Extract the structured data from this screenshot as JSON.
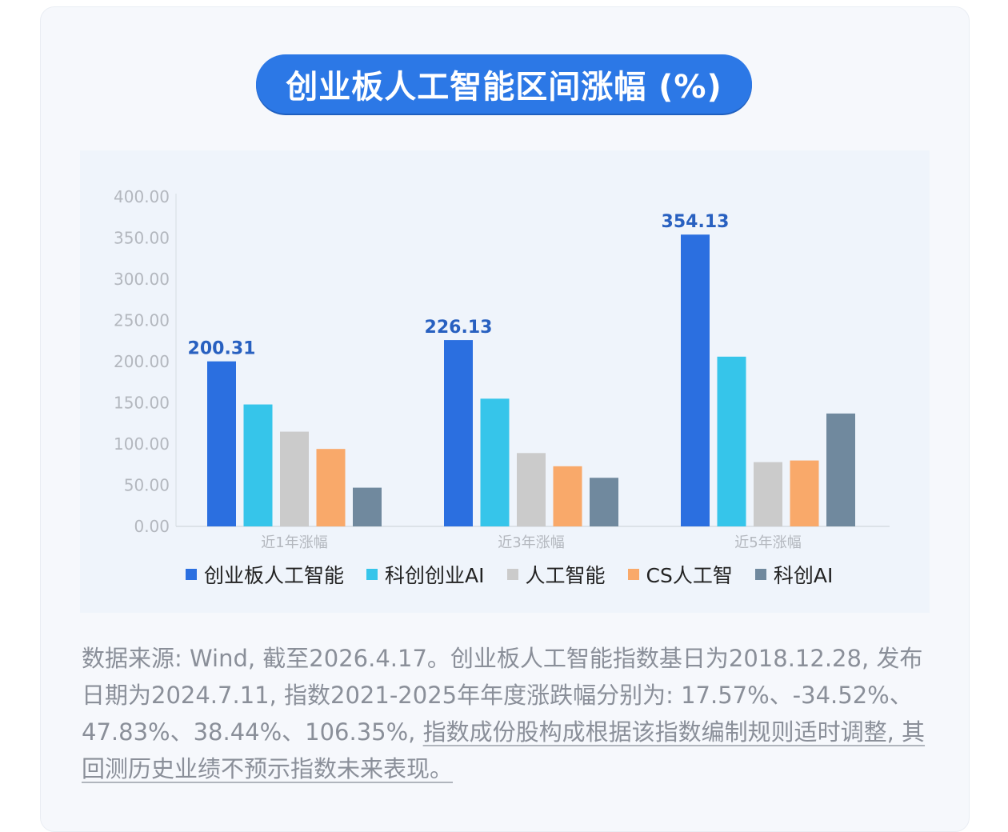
{
  "title": "创业板人工智能区间涨幅 (%)",
  "note": {
    "plain": "数据来源: Wind, 截至2026.4.17。创业板人工智能指数基日为2018.12.28, 发布日期为2024.7.11, 指数2021-2025年年度涨跌幅分别为: 17.57%、-34.52%、47.83%、38.44%、106.35%, ",
    "underlined": "指数成份股构成根据该指数编制规则适时调整, 其回测历史业绩不预示指数未来表现。"
  },
  "chart_data": {
    "type": "bar",
    "title": "创业板人工智能区间涨幅 (%)",
    "categories": [
      "近1年涨幅",
      "近3年涨幅",
      "近5年涨幅"
    ],
    "ylim": [
      0,
      400
    ],
    "yticks": [
      "0.00",
      "50.00",
      "100.00",
      "150.00",
      "200.00",
      "250.00",
      "300.00",
      "350.00",
      "400.00"
    ],
    "grid": false,
    "legend_position": "bottom",
    "series": [
      {
        "name": "创业板人工智能",
        "color": "#2b6fe0",
        "values": [
          200.31,
          226.13,
          354.13
        ],
        "labels": [
          "200.31",
          "226.13",
          "354.13"
        ]
      },
      {
        "name": "科创创业AI",
        "color": "#36c5ea",
        "values": [
          148,
          155,
          206
        ],
        "labels": [
          "",
          "",
          ""
        ]
      },
      {
        "name": "人工智能",
        "color": "#cbcbcb",
        "values": [
          115,
          89,
          78
        ],
        "labels": [
          "",
          "",
          ""
        ]
      },
      {
        "name": "CS人工智",
        "color": "#f9a96a",
        "values": [
          94,
          73,
          80
        ],
        "labels": [
          "",
          "",
          ""
        ]
      },
      {
        "name": "科创AI",
        "color": "#70899e",
        "values": [
          47,
          59,
          137
        ],
        "labels": [
          "",
          "",
          ""
        ]
      }
    ],
    "label_color": "#2860c0"
  }
}
